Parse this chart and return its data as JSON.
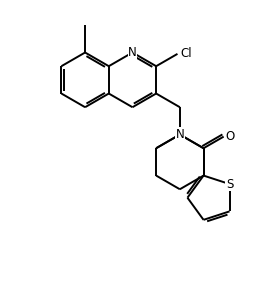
{
  "bg_color": "#ffffff",
  "line_color": "#000000",
  "line_width": 1.4,
  "font_size": 8.5,
  "figsize": [
    2.55,
    2.89
  ],
  "dpi": 100,
  "xlim": [
    0,
    10
  ],
  "ylim": [
    0,
    11.4
  ]
}
